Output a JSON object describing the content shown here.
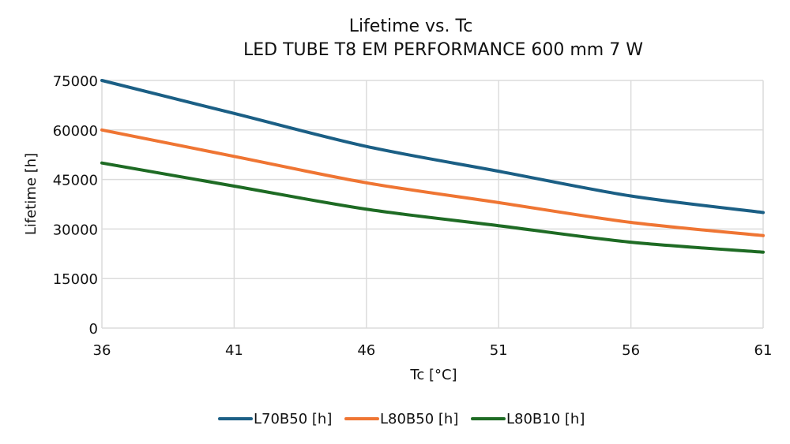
{
  "chart_data": {
    "type": "line",
    "title": "Lifetime vs. Tc",
    "subtitle": "LED TUBE T8 EM PERFORMANCE 600 mm 7 W",
    "xlabel": "Tc [°C]",
    "ylabel": "Lifetime [h]",
    "x": [
      36,
      41,
      46,
      51,
      56,
      61
    ],
    "xlim": [
      36,
      61
    ],
    "ylim": [
      0,
      75000
    ],
    "yticks": [
      0,
      15000,
      30000,
      45000,
      60000,
      75000
    ],
    "grid": true,
    "legend": "bottom",
    "series": [
      {
        "name": "L70B50 [h]",
        "color": "#1b5f85",
        "values": [
          75000,
          65000,
          55000,
          47500,
          40000,
          35000
        ]
      },
      {
        "name": "L80B50 [h]",
        "color": "#ef7533",
        "values": [
          60000,
          52000,
          44000,
          38000,
          32000,
          28000
        ]
      },
      {
        "name": "L80B10 [h]",
        "color": "#1e6b24",
        "values": [
          50000,
          43000,
          36000,
          31000,
          26000,
          23000
        ]
      }
    ]
  }
}
